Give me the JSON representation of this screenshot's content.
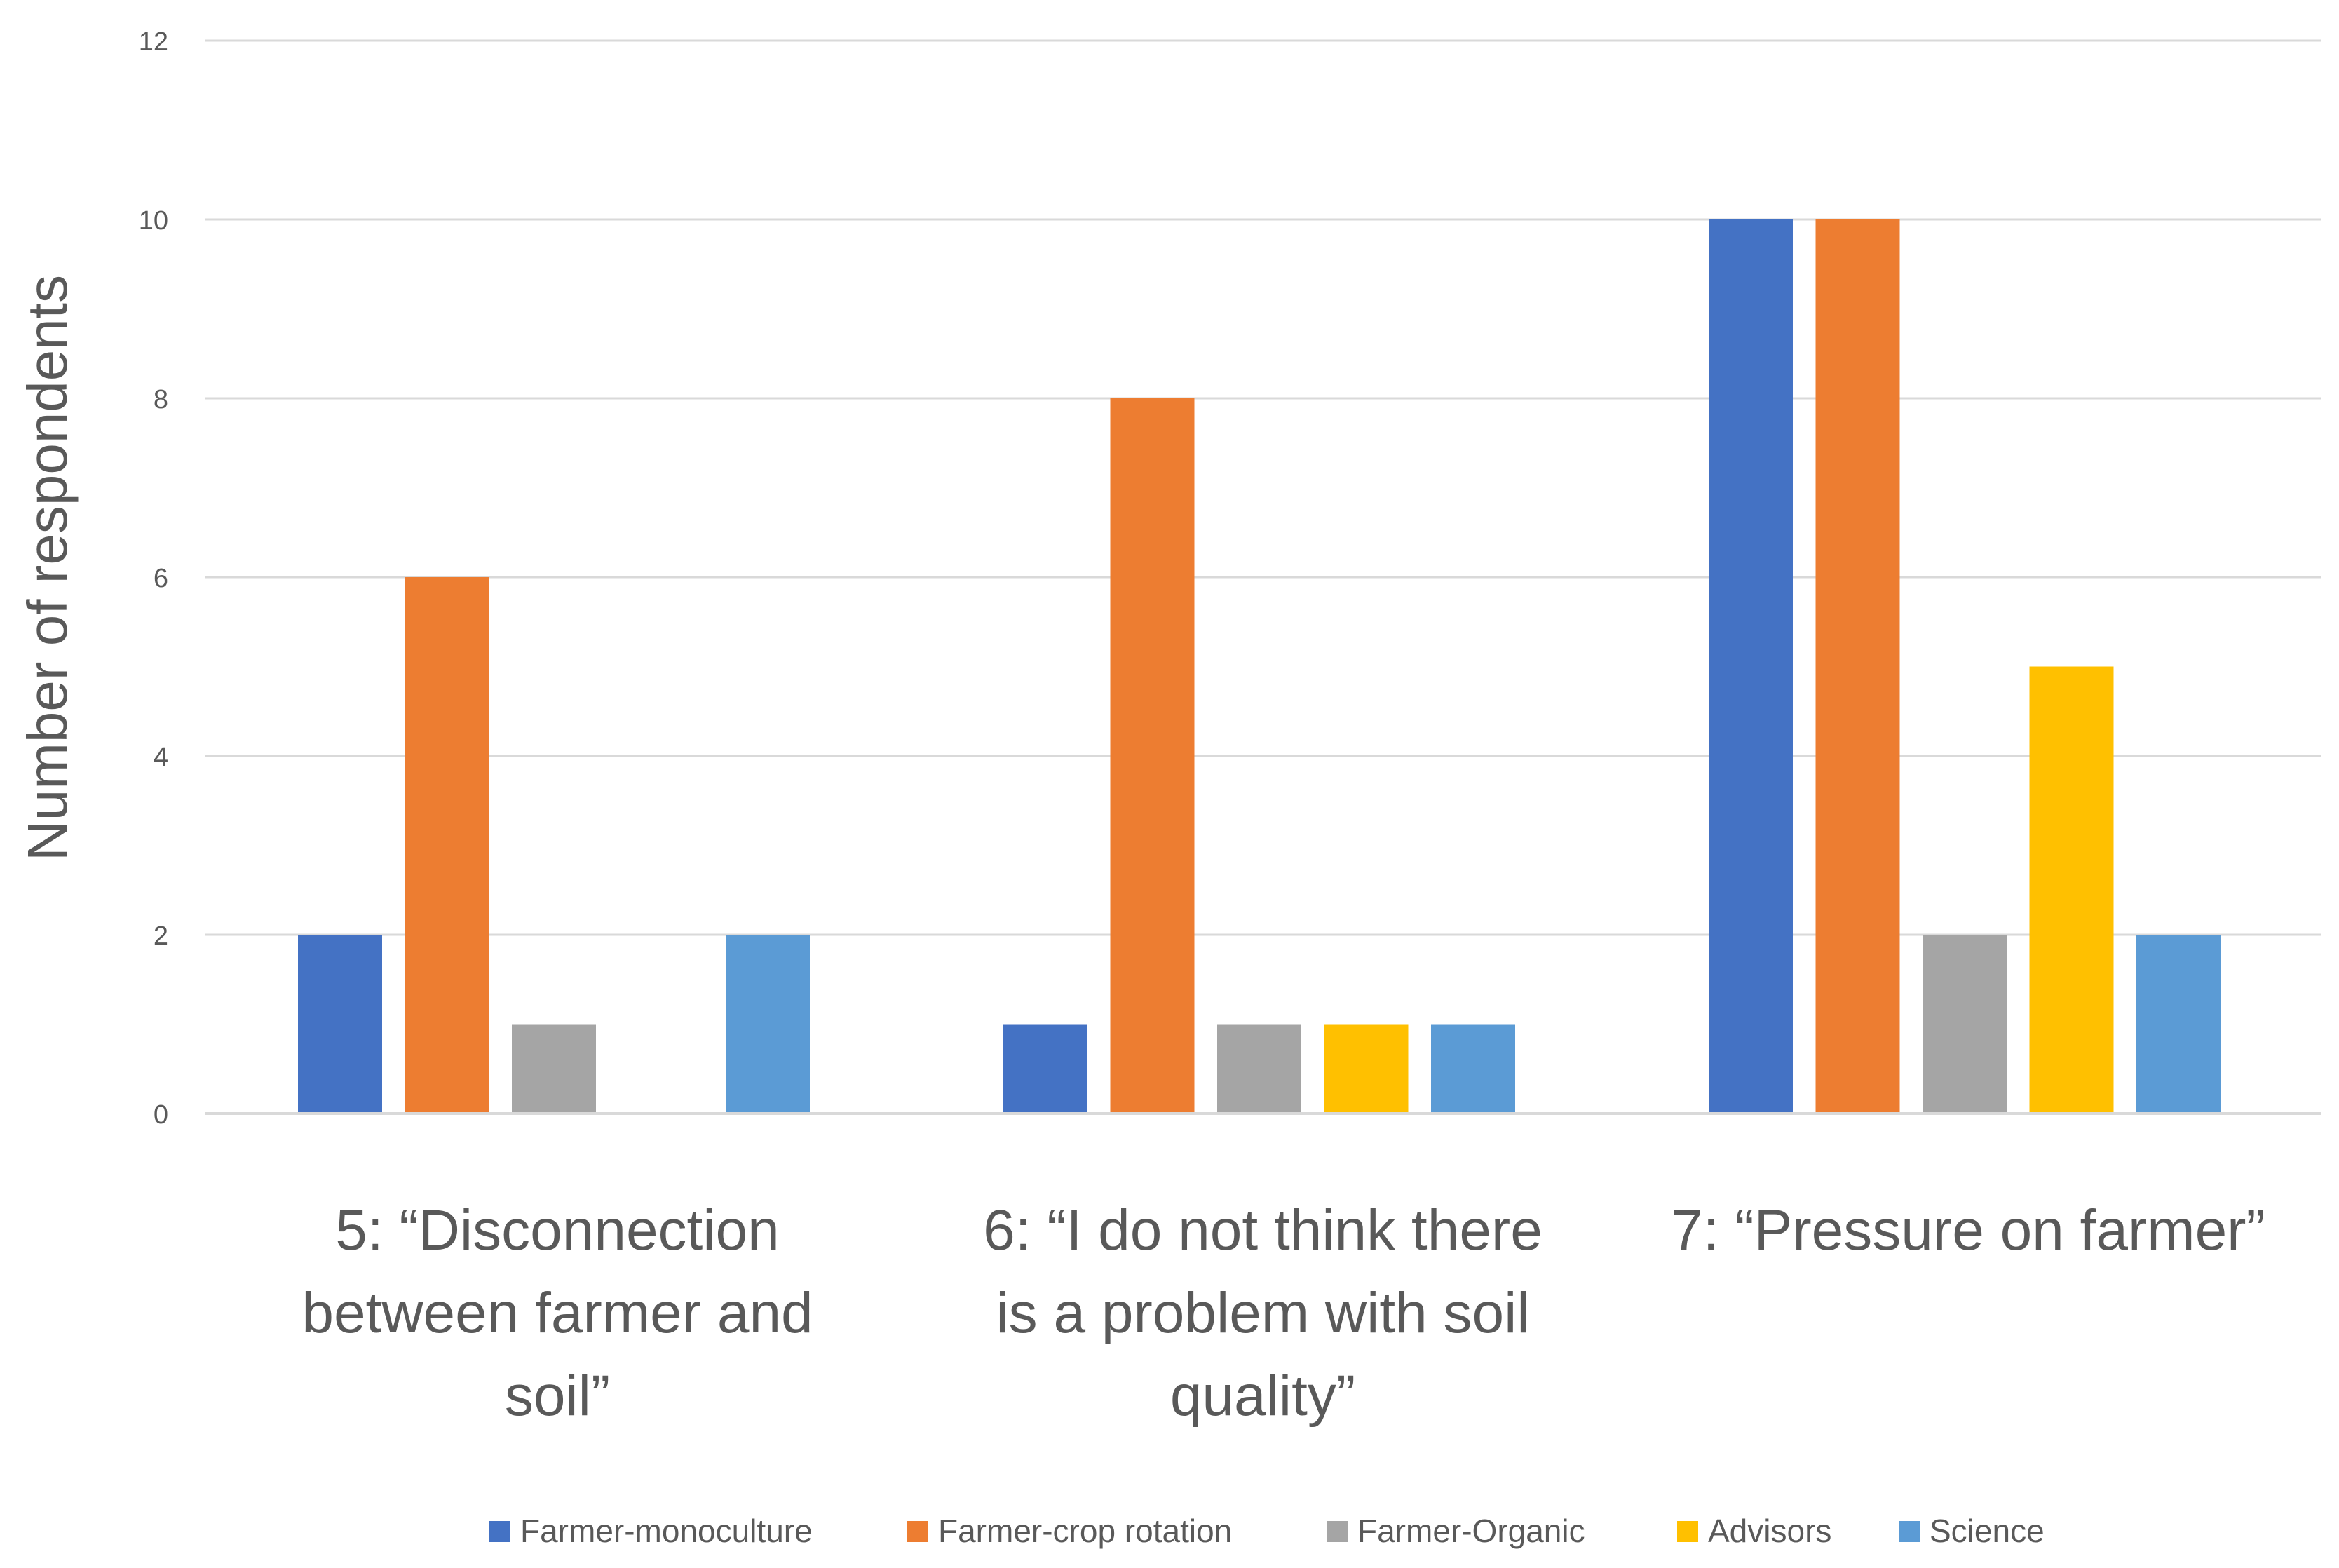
{
  "chart_data": {
    "type": "bar",
    "title": "",
    "xlabel": "",
    "ylabel": "Number of respondents",
    "ylim": [
      0,
      12
    ],
    "yticks": [
      0,
      2,
      4,
      6,
      8,
      10,
      12
    ],
    "grid": true,
    "legend_position": "bottom",
    "categories": [
      [
        "5: “Disconnection",
        "between farmer and",
        "soil”"
      ],
      [
        "6: “I do not think there",
        "is a problem with soil",
        "quality”"
      ],
      [
        "7: “Pressure on farmer”"
      ]
    ],
    "series": [
      {
        "name": "Farmer-monoculture",
        "color": "#4472C4",
        "values": [
          2,
          1,
          10
        ]
      },
      {
        "name": "Farmer-crop rotation",
        "color": "#ED7D31",
        "values": [
          6,
          8,
          10
        ]
      },
      {
        "name": "Farmer-Organic",
        "color": "#A5A5A5",
        "values": [
          1,
          1,
          2
        ]
      },
      {
        "name": "Advisors",
        "color": "#FFC000",
        "values": [
          0,
          1,
          5
        ]
      },
      {
        "name": "Science",
        "color": "#5B9BD5",
        "values": [
          2,
          1,
          2
        ]
      }
    ]
  }
}
